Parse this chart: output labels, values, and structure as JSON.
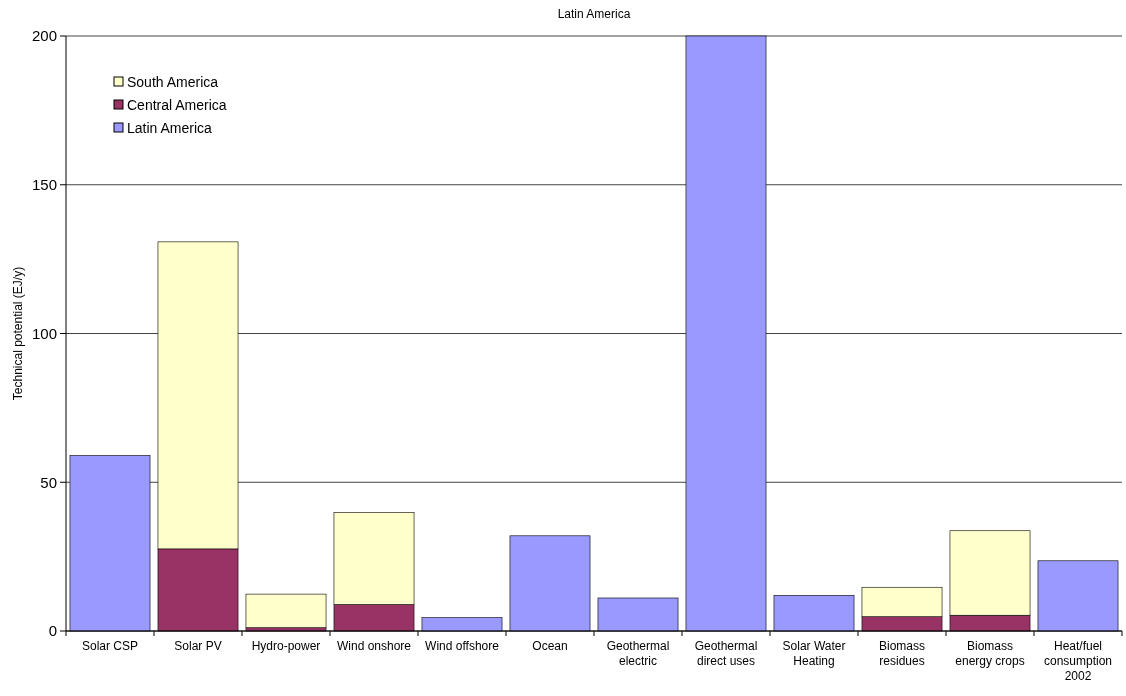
{
  "chart_data": {
    "type": "bar",
    "title": "Latin America",
    "ylabel": "Technical potential (EJ/y)",
    "categories": [
      "Solar CSP",
      "Solar PV",
      "Hydro-power",
      "Wind onshore",
      "Wind offshore",
      "Ocean",
      "Geothermal electric",
      "Geothermal direct uses",
      "Solar Water Heating",
      "Biomass residues",
      "Biomass energy crops",
      "Heat/fuel consumption 2002"
    ],
    "stacked": true,
    "series": [
      {
        "name": "Latin America",
        "color": "#9999ff",
        "values": [
          59,
          null,
          null,
          null,
          4.5,
          32,
          11.1,
          200,
          12,
          null,
          null,
          23.6
        ]
      },
      {
        "name": "Central America",
        "color": "#993366",
        "values": [
          null,
          27.6,
          1.1,
          8.9,
          null,
          null,
          null,
          null,
          null,
          4.8,
          5.3,
          null
        ]
      },
      {
        "name": "South America",
        "color": "#ffffcc",
        "values": [
          null,
          103.2,
          11.3,
          30.9,
          null,
          null,
          null,
          null,
          null,
          9.9,
          28.4,
          null
        ]
      }
    ],
    "ylim": [
      0,
      200
    ],
    "yticks": [
      0,
      50,
      100,
      150,
      200
    ],
    "grid": "y",
    "legend": "top left"
  }
}
